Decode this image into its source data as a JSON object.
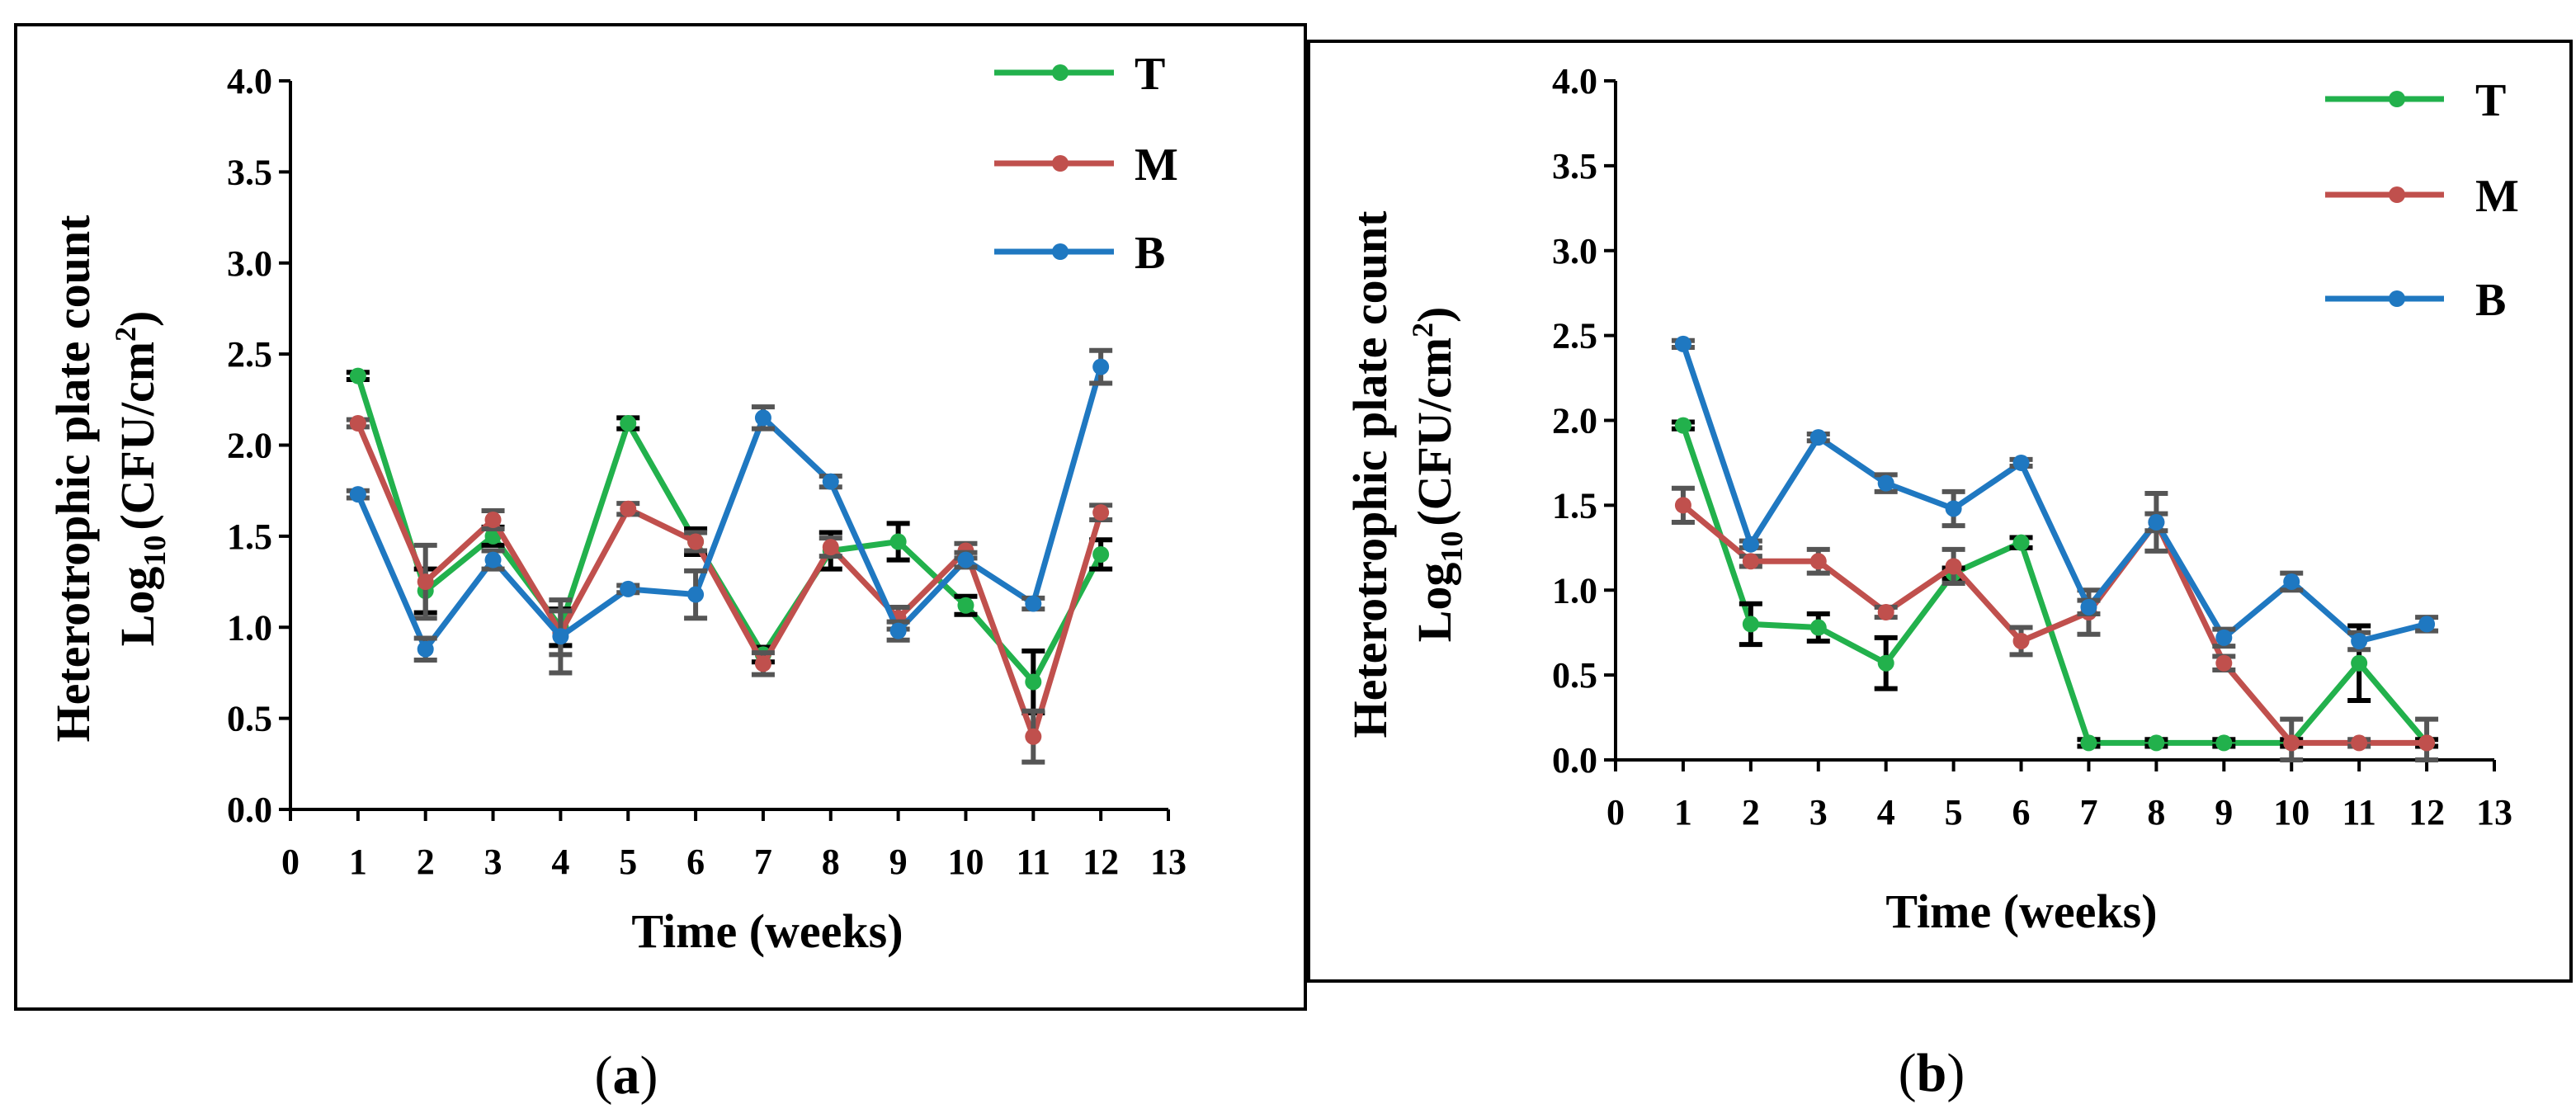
{
  "colors": {
    "T": "#22b14c",
    "M": "#c0504d",
    "B": "#1f78c1",
    "error_black": "#000000",
    "error_gray": "#555555"
  },
  "chart_data": [
    {
      "panel": "a",
      "caption_open": "(",
      "caption_letter": "a",
      "caption_close": ")",
      "type": "line",
      "xlabel": "Time (weeks)",
      "ylabel_line1": "Heterotrophic plate count",
      "ylabel_line2_main": "Log",
      "ylabel_line2_sub": "10",
      "ylabel_line2_unit": "(CFU/cm",
      "ylabel_line2_sup": "2",
      "ylabel_line2_close": ")",
      "xlim": [
        0,
        13
      ],
      "ylim": [
        0,
        4
      ],
      "x_ticks": [
        "0",
        "1",
        "2",
        "3",
        "4",
        "5",
        "6",
        "7",
        "8",
        "9",
        "10",
        "11",
        "12",
        "13"
      ],
      "y_ticks": [
        "0.0",
        "0.5",
        "1.0",
        "1.5",
        "2.0",
        "2.5",
        "3.0",
        "3.5",
        "4.0"
      ],
      "x": [
        1,
        2,
        3,
        4,
        5,
        6,
        7,
        8,
        9,
        10,
        11,
        12
      ],
      "series": [
        {
          "name": "T",
          "color_key": "T",
          "errcolor": "error_black",
          "values": [
            2.38,
            1.2,
            1.5,
            1.0,
            2.12,
            1.47,
            0.85,
            1.42,
            1.47,
            1.12,
            0.7,
            1.4
          ],
          "errors": [
            0.02,
            0.12,
            0.05,
            0.1,
            0.03,
            0.07,
            0.04,
            0.1,
            0.1,
            0.05,
            0.17,
            0.08
          ]
        },
        {
          "name": "M",
          "color_key": "M",
          "errcolor": "error_gray",
          "values": [
            2.12,
            1.25,
            1.59,
            0.97,
            1.65,
            1.47,
            0.8,
            1.44,
            1.05,
            1.42,
            0.4,
            1.63
          ],
          "errors": [
            0.02,
            0.2,
            0.05,
            0.12,
            0.03,
            0.05,
            0.06,
            0.05,
            0.06,
            0.04,
            0.14,
            0.04
          ]
        },
        {
          "name": "B",
          "color_key": "B",
          "errcolor": "error_gray",
          "values": [
            1.73,
            0.88,
            1.37,
            0.95,
            1.21,
            1.18,
            2.15,
            1.8,
            0.98,
            1.37,
            1.13,
            2.43
          ],
          "errors": [
            0.02,
            0.06,
            0.05,
            0.2,
            0.02,
            0.13,
            0.06,
            0.03,
            0.05,
            0.04,
            0.03,
            0.09
          ]
        }
      ]
    },
    {
      "panel": "b",
      "caption_open": "(",
      "caption_letter": "b",
      "caption_close": ")",
      "type": "line",
      "xlabel": "Time (weeks)",
      "ylabel_line1": "Heterotrophic plate count",
      "ylabel_line2_main": "Log",
      "ylabel_line2_sub": "10",
      "ylabel_line2_unit": "(CFU/cm",
      "ylabel_line2_sup": "2",
      "ylabel_line2_close": ")",
      "xlim": [
        0,
        13
      ],
      "ylim": [
        0,
        4
      ],
      "x_ticks": [
        "0",
        "1",
        "2",
        "3",
        "4",
        "5",
        "6",
        "7",
        "8",
        "9",
        "10",
        "11",
        "12",
        "13"
      ],
      "y_ticks": [
        "0.0",
        "0.5",
        "1.0",
        "1.5",
        "2.0",
        "2.5",
        "3.0",
        "3.5",
        "4.0"
      ],
      "x": [
        1,
        2,
        3,
        4,
        5,
        6,
        7,
        8,
        9,
        10,
        11,
        12
      ],
      "series": [
        {
          "name": "T",
          "color_key": "T",
          "errcolor": "error_black",
          "values": [
            1.97,
            0.8,
            0.78,
            0.57,
            1.1,
            1.28,
            0.1,
            0.1,
            0.1,
            0.1,
            0.57,
            0.1
          ],
          "errors": [
            0.02,
            0.12,
            0.08,
            0.15,
            0.03,
            0.03,
            0.02,
            0.02,
            0.02,
            0.02,
            0.22,
            0.02
          ]
        },
        {
          "name": "M",
          "color_key": "M",
          "errcolor": "error_gray",
          "values": [
            1.5,
            1.17,
            1.17,
            0.87,
            1.14,
            0.7,
            0.87,
            1.4,
            0.57,
            0.1,
            0.1,
            0.1
          ],
          "errors": [
            0.1,
            0.03,
            0.07,
            0.03,
            0.1,
            0.08,
            0.13,
            0.17,
            0.04,
            0.14,
            0.02,
            0.14
          ]
        },
        {
          "name": "B",
          "color_key": "B",
          "errcolor": "error_gray",
          "values": [
            2.45,
            1.27,
            1.9,
            1.63,
            1.48,
            1.75,
            0.9,
            1.4,
            0.72,
            1.05,
            0.7,
            0.8
          ],
          "errors": [
            0.02,
            0.02,
            0.02,
            0.05,
            0.1,
            0.02,
            0.04,
            0.05,
            0.05,
            0.05,
            0.05,
            0.04
          ]
        }
      ]
    }
  ]
}
